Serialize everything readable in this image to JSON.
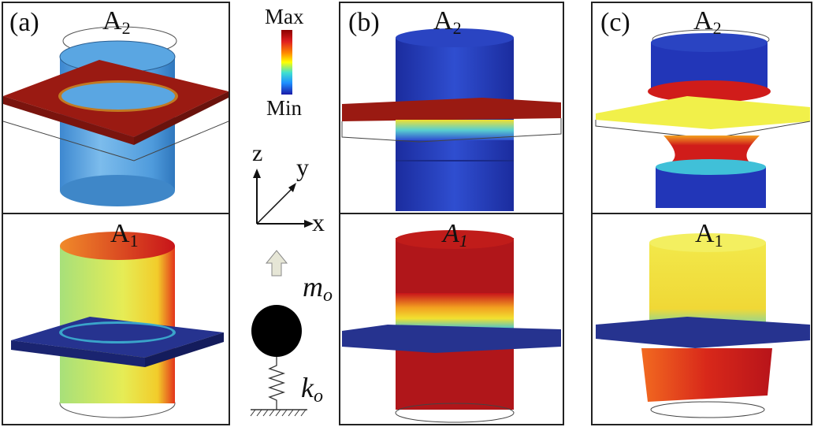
{
  "panels": {
    "a": {
      "tag": "(a)"
    },
    "b": {
      "tag": "(b)"
    },
    "c": {
      "tag": "(c)"
    }
  },
  "modes": {
    "upper": {
      "letter": "A",
      "index": "2"
    },
    "lower": {
      "letter": "A",
      "index": "1"
    }
  },
  "colorbar": {
    "max_label": "Max",
    "min_label": "Min",
    "colors": [
      "#8b0000",
      "#e02020",
      "#ff8c00",
      "#ffff00",
      "#40e0d0",
      "#1e90ff",
      "#1a1aa8"
    ]
  },
  "axes": {
    "z": "z",
    "y": "y",
    "x": "x"
  },
  "model": {
    "mass": "m",
    "mass_sub": "o",
    "spring": "k",
    "spring_sub": "o"
  },
  "colors": {
    "red": "#9a1a12",
    "blue": "#26338f",
    "cyan": "#5aa9dc",
    "yellow": "#f1f04a",
    "orange": "#e0751d"
  }
}
